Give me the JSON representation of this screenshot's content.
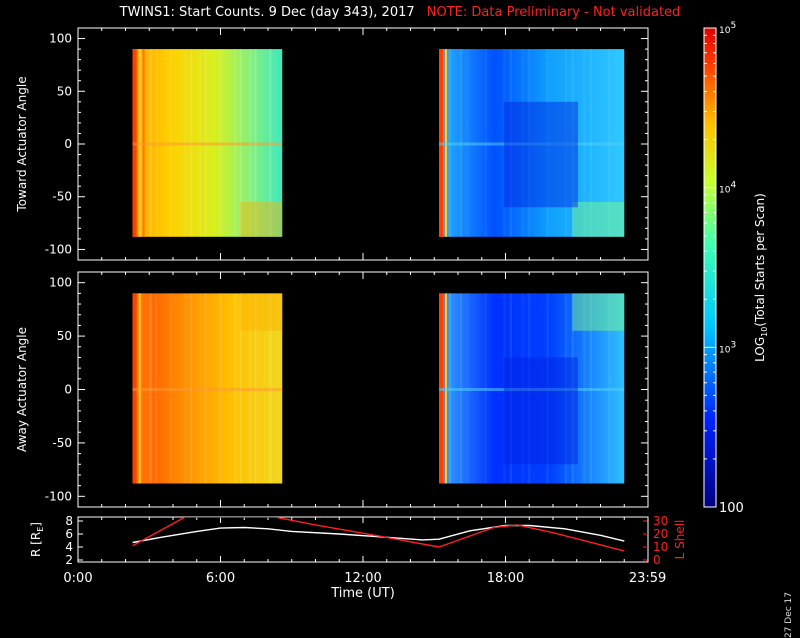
{
  "title": {
    "main": "TWINS1: Start Counts.  9 Dec (day 343), 2017",
    "note": "NOTE: Data Preliminary - Not validated"
  },
  "credit": "27 Dec 17",
  "colors": {
    "background": "#000000",
    "axes": "#ffffff",
    "l_shell": "#ff2020",
    "r_earth": "#ffffff"
  },
  "chart_data": [
    {
      "type": "heatmap",
      "panel": "top",
      "ylabel": "Toward Actuator Angle",
      "ylim": [
        -110,
        110
      ],
      "yticks": [
        100,
        50,
        0,
        -50,
        -100
      ],
      "xlim": [
        0,
        24
      ],
      "data_blocks": [
        {
          "t_start": 2.3,
          "t_end": 8.6,
          "angle_range": [
            -88,
            90
          ],
          "level": "high (~1e4-1e5)"
        },
        {
          "t_start": 15.2,
          "t_end": 23.0,
          "angle_range": [
            -88,
            90
          ],
          "level": "low (~1e2-1e3)"
        }
      ]
    },
    {
      "type": "heatmap",
      "panel": "middle",
      "ylabel": "Away Actuator Angle",
      "ylim": [
        -110,
        110
      ],
      "yticks": [
        100,
        50,
        0,
        -50,
        -100
      ],
      "xlim": [
        0,
        24
      ],
      "data_blocks": [
        {
          "t_start": 2.3,
          "t_end": 8.6,
          "angle_range": [
            -88,
            90
          ],
          "level": "high (~1e4-1e5)"
        },
        {
          "t_start": 15.2,
          "t_end": 23.0,
          "angle_range": [
            -88,
            90
          ],
          "level": "low (~1e2-1e3)"
        }
      ]
    },
    {
      "type": "line",
      "panel": "bottom",
      "xlabel": "Time (UT)",
      "xlim": [
        0,
        24
      ],
      "xticks": [
        0,
        6,
        12,
        18,
        23.983
      ],
      "xtick_labels": [
        "0:00",
        "6:00",
        "12:00",
        "18:00",
        "23:59"
      ],
      "ylabel_left": "R [R",
      "ylabel_left_sub": "E",
      "ylabel_left_tail": "]",
      "ylim_left": [
        2,
        8
      ],
      "yticks_left": [
        8,
        6,
        4,
        2
      ],
      "ylabel_right": "L Shell",
      "ylim_right": [
        0,
        30
      ],
      "yticks_right": [
        30,
        20,
        10,
        0
      ],
      "series": [
        {
          "name": "R",
          "axis": "left",
          "color": "#ffffff",
          "x": [
            2.3,
            3.5,
            5.0,
            6.0,
            7.0,
            8.0,
            9.0,
            11.0,
            13.0,
            14.5,
            15.2,
            16.5,
            18.0,
            19.0,
            20.5,
            22.0,
            23.0
          ],
          "y": [
            4.7,
            5.5,
            6.4,
            6.9,
            7.0,
            6.8,
            6.4,
            6.0,
            5.5,
            5.1,
            5.2,
            6.5,
            7.3,
            7.3,
            6.8,
            5.8,
            4.9
          ]
        },
        {
          "name": "L Shell",
          "axis": "right",
          "color": "#ff2020",
          "x": [
            2.3,
            4.0,
            4.5,
            8.3,
            10.0,
            12.5,
            15.2,
            17.5,
            18.5,
            20.0,
            23.0
          ],
          "y": [
            11,
            28,
            33,
            33,
            27,
            19,
            10,
            25,
            27,
            21,
            7
          ]
        }
      ]
    }
  ],
  "colorbar": {
    "label_prefix": "LOG",
    "label_sub": "10",
    "label_tail": "(Total Starts per Scan)",
    "scale": "log",
    "range": [
      100,
      100000
    ],
    "ticks": [
      {
        "value": 100000,
        "base": "10",
        "exp": "5"
      },
      {
        "value": 10000,
        "base": "10",
        "exp": "4"
      },
      {
        "value": 1000,
        "base": "10",
        "exp": "3"
      },
      {
        "value": 100,
        "text": "100"
      }
    ]
  }
}
